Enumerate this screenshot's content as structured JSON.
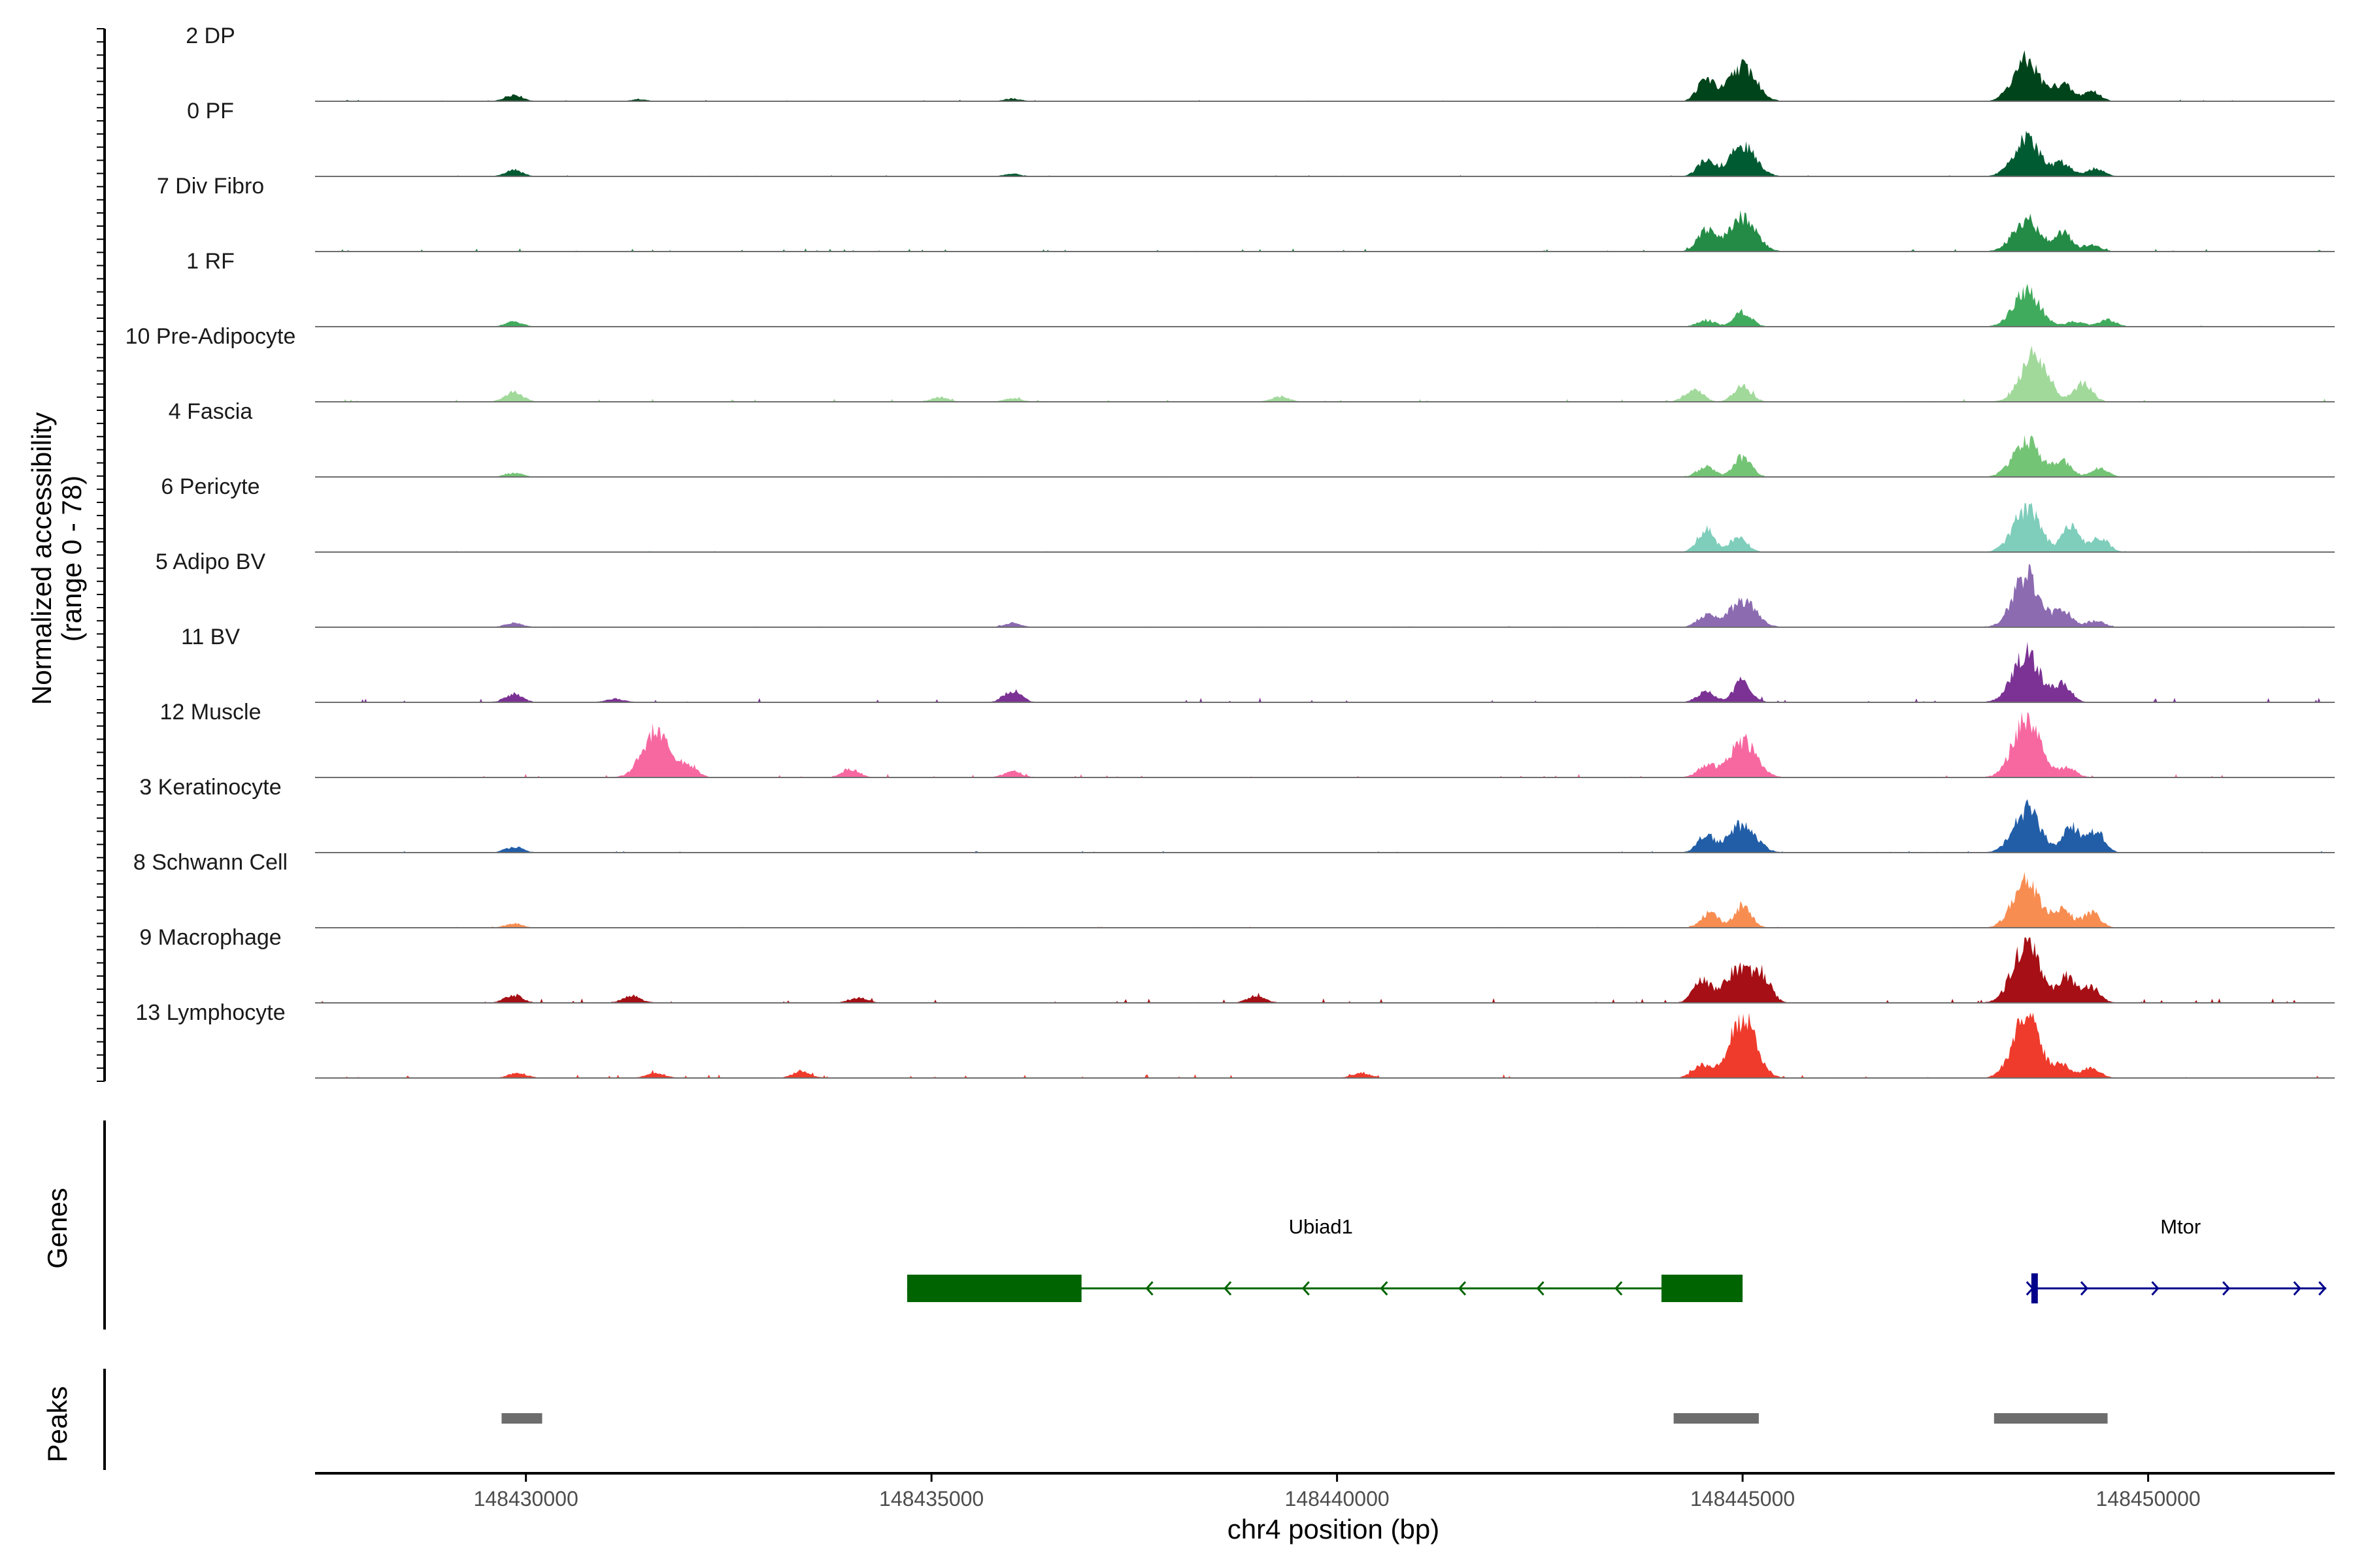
{
  "chart_data": {
    "type": "area",
    "y_axis_title": [
      "Normalized accessibility",
      "(range 0 - 78)"
    ],
    "y_range": [
      0,
      78
    ],
    "x_axis_title": "chr4 position (bp)",
    "x_range": [
      148427400,
      148452300
    ],
    "x_ticks": [
      148430000,
      148435000,
      148440000,
      148445000,
      148450000
    ],
    "x_tick_labels": [
      "148430000",
      "148435000",
      "148440000",
      "148445000",
      "148450000"
    ],
    "tracks": [
      {
        "label": "2 DP",
        "color": "#00441b",
        "peaks": [
          [
            148429850,
            8
          ],
          [
            148431400,
            2
          ],
          [
            148436000,
            3
          ],
          [
            148444550,
            26
          ],
          [
            148445000,
            42
          ],
          [
            148448500,
            48
          ],
          [
            148448950,
            20
          ],
          [
            148449300,
            12
          ]
        ],
        "noise": 0.8
      },
      {
        "label": "0 PF",
        "color": "#005a32",
        "peaks": [
          [
            148429850,
            8
          ],
          [
            148436000,
            3
          ],
          [
            148444550,
            18
          ],
          [
            148445000,
            36
          ],
          [
            148448500,
            44
          ],
          [
            148448950,
            16
          ],
          [
            148449350,
            10
          ]
        ],
        "noise": 0.6
      },
      {
        "label": "7 Div Fibro",
        "color": "#238b45",
        "peaks": [
          [
            148444550,
            26
          ],
          [
            148445000,
            40
          ],
          [
            148448500,
            38
          ],
          [
            148448950,
            22
          ],
          [
            148449300,
            8
          ]
        ],
        "noise": 1.6
      },
      {
        "label": "1 RF",
        "color": "#41ab5d",
        "peaks": [
          [
            148429850,
            6
          ],
          [
            148444550,
            8
          ],
          [
            148445000,
            18
          ],
          [
            148448500,
            42
          ],
          [
            148449100,
            6
          ],
          [
            148449500,
            8
          ]
        ],
        "noise": 0.5
      },
      {
        "label": "10 Pre-Adipocyte",
        "color": "#a1d99b",
        "peaks": [
          [
            148429850,
            12
          ],
          [
            148435100,
            5
          ],
          [
            148436000,
            4
          ],
          [
            148439300,
            6
          ],
          [
            148444400,
            16
          ],
          [
            148445000,
            18
          ],
          [
            148448600,
            56
          ],
          [
            148449200,
            22
          ]
        ],
        "noise": 1.6
      },
      {
        "label": "4 Fascia",
        "color": "#74c476",
        "peaks": [
          [
            148429850,
            5
          ],
          [
            148444550,
            12
          ],
          [
            148445000,
            24
          ],
          [
            148448500,
            44
          ],
          [
            148448950,
            18
          ],
          [
            148449400,
            10
          ]
        ],
        "noise": 0.5
      },
      {
        "label": "6 Pericyte",
        "color": "#7fcdbb",
        "peaks": [
          [
            148444550,
            26
          ],
          [
            148444950,
            18
          ],
          [
            148448500,
            52
          ],
          [
            148449050,
            30
          ],
          [
            148449400,
            18
          ]
        ],
        "noise": 0.6
      },
      {
        "label": "5 Adipo BV",
        "color": "#8c6bb1",
        "peaks": [
          [
            148429850,
            5
          ],
          [
            148436000,
            5
          ],
          [
            148444550,
            14
          ],
          [
            148445000,
            32
          ],
          [
            148448500,
            62
          ],
          [
            148448950,
            20
          ],
          [
            148449350,
            8
          ]
        ],
        "noise": 0.5
      },
      {
        "label": "11 BV",
        "color": "#7b3294",
        "peaks": [
          [
            148429850,
            10
          ],
          [
            148431100,
            4
          ],
          [
            148436000,
            14
          ],
          [
            148444550,
            12
          ],
          [
            148445000,
            26
          ],
          [
            148448500,
            58
          ],
          [
            148448950,
            20
          ]
        ],
        "noise": 2.4
      },
      {
        "label": "12 Muscle",
        "color": "#f768a1",
        "peaks": [
          [
            148431600,
            54
          ],
          [
            148432000,
            14
          ],
          [
            148434000,
            10
          ],
          [
            148436000,
            7
          ],
          [
            148444550,
            14
          ],
          [
            148445000,
            44
          ],
          [
            148448500,
            72
          ],
          [
            148449000,
            12
          ]
        ],
        "noise": 1.8
      },
      {
        "label": "3 Keratinocyte",
        "color": "#225ea8",
        "peaks": [
          [
            148429850,
            7
          ],
          [
            148444550,
            20
          ],
          [
            148445000,
            34
          ],
          [
            148448500,
            52
          ],
          [
            148449050,
            30
          ],
          [
            148449350,
            26
          ]
        ],
        "noise": 0.8
      },
      {
        "label": "8 Schwann Cell",
        "color": "#f88d52",
        "peaks": [
          [
            148429850,
            5
          ],
          [
            148444600,
            18
          ],
          [
            148445000,
            26
          ],
          [
            148448500,
            56
          ],
          [
            148448950,
            22
          ],
          [
            148449300,
            18
          ]
        ],
        "noise": 0.6
      },
      {
        "label": "9 Macrophage",
        "color": "#a50f15",
        "peaks": [
          [
            148429850,
            9
          ],
          [
            148431300,
            8
          ],
          [
            148434100,
            6
          ],
          [
            148439000,
            8
          ],
          [
            148444500,
            28
          ],
          [
            148444950,
            40
          ],
          [
            148445250,
            28
          ],
          [
            148448500,
            74
          ],
          [
            148449000,
            30
          ],
          [
            148449300,
            18
          ]
        ],
        "noise": 2.6
      },
      {
        "label": "13 Lymphocyte",
        "color": "#ef3b2c",
        "peaks": [
          [
            148429900,
            6
          ],
          [
            148431600,
            6
          ],
          [
            148433400,
            8
          ],
          [
            148440300,
            6
          ],
          [
            148444500,
            16
          ],
          [
            148445000,
            72
          ],
          [
            148448500,
            72
          ],
          [
            148448950,
            14
          ],
          [
            148449300,
            12
          ]
        ],
        "noise": 2.0
      }
    ],
    "genes_title": "Genes",
    "genes": [
      {
        "name": "Ubiad1",
        "strand": "-",
        "start": 148434700,
        "end": 148445000,
        "color": "#006400",
        "exons": [
          [
            148434700,
            148436850
          ],
          [
            148444000,
            148445000
          ]
        ]
      },
      {
        "name": "Mtor",
        "strand": "+",
        "start": 148448600,
        "end": 148452100,
        "color": "#00008b",
        "exons": [
          [
            148448560,
            148448640
          ]
        ]
      }
    ],
    "peaks_title": "Peaks",
    "peak_regions": [
      [
        148429700,
        148430200
      ],
      [
        148444150,
        148445200
      ],
      [
        148448100,
        148449500
      ]
    ]
  }
}
